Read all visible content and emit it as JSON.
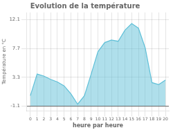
{
  "chart_data": {
    "type": "area",
    "title": "Evolution de la température",
    "xlabel": "heure par heure",
    "ylabel": "Température en °C",
    "x": [
      0,
      1,
      2,
      3,
      4,
      5,
      6,
      7,
      8,
      9,
      10,
      11,
      12,
      13,
      14,
      15,
      16,
      17,
      18,
      19,
      20
    ],
    "series": [
      {
        "color": "#60c0d8",
        "values": [
          0.5,
          3.8,
          3.5,
          3.0,
          2.6,
          2.0,
          0.8,
          -0.8,
          0.5,
          3.8,
          7.2,
          8.6,
          9.0,
          8.8,
          10.5,
          11.5,
          10.8,
          7.8,
          2.5,
          2.2,
          2.9
        ]
      }
    ],
    "baseline": -1.1,
    "xlim": [
      -0.5,
      20.5
    ],
    "xticks": [
      0,
      1,
      2,
      3,
      4,
      5,
      6,
      7,
      8,
      9,
      10,
      11,
      12,
      13,
      14,
      15,
      16,
      17,
      18,
      19,
      20
    ],
    "ylim": [
      -1.8,
      13.2
    ],
    "yticks": [
      -1.1,
      3.3,
      7.7,
      12.1
    ],
    "grid": true
  }
}
